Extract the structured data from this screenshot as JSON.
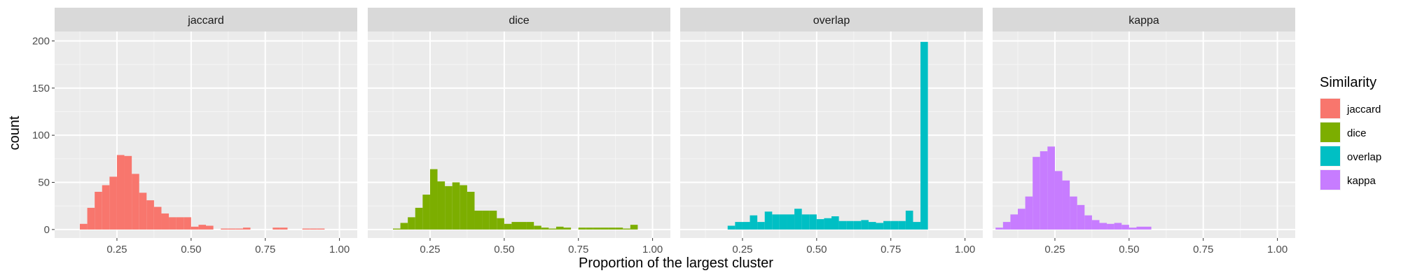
{
  "chart_data": {
    "type": "bar",
    "xlabel": "Proportion of the largest cluster",
    "ylabel": "count",
    "xlim": [
      0.04,
      1.06
    ],
    "ylim": [
      -9,
      210
    ],
    "x_ticks": [
      0.25,
      0.5,
      0.75,
      1.0
    ],
    "x_tick_labels": [
      "0.25",
      "0.50",
      "0.75",
      "1.00"
    ],
    "y_ticks": [
      0,
      50,
      100,
      150,
      200
    ],
    "y_tick_labels": [
      "0",
      "50",
      "100",
      "150",
      "200"
    ],
    "bin_width": 0.025,
    "grid": true,
    "legend": {
      "title": "Similarity",
      "position": "right",
      "entries": [
        {
          "label": "jaccard",
          "color": "#F8766D"
        },
        {
          "label": "dice",
          "color": "#7CAE00"
        },
        {
          "label": "overlap",
          "color": "#00BFC4"
        },
        {
          "label": "kappa",
          "color": "#C77CFF"
        }
      ]
    },
    "panels": [
      {
        "name": "jaccard",
        "color": "#F8766D",
        "bins": [
          [
            0.125,
            6
          ],
          [
            0.15,
            23
          ],
          [
            0.175,
            40
          ],
          [
            0.2,
            47
          ],
          [
            0.225,
            56
          ],
          [
            0.25,
            79
          ],
          [
            0.275,
            78
          ],
          [
            0.3,
            59
          ],
          [
            0.325,
            39
          ],
          [
            0.35,
            31
          ],
          [
            0.375,
            24
          ],
          [
            0.4,
            17
          ],
          [
            0.425,
            13
          ],
          [
            0.45,
            13
          ],
          [
            0.475,
            13
          ],
          [
            0.5,
            3
          ],
          [
            0.525,
            5
          ],
          [
            0.55,
            4
          ],
          [
            0.6,
            1
          ],
          [
            0.625,
            1
          ],
          [
            0.65,
            1
          ],
          [
            0.675,
            2
          ],
          [
            0.775,
            2
          ],
          [
            0.8,
            2
          ],
          [
            0.875,
            1
          ],
          [
            0.9,
            1
          ],
          [
            0.925,
            1
          ]
        ]
      },
      {
        "name": "dice",
        "color": "#7CAE00",
        "bins": [
          [
            0.125,
            1
          ],
          [
            0.15,
            7
          ],
          [
            0.175,
            13
          ],
          [
            0.2,
            23
          ],
          [
            0.225,
            37
          ],
          [
            0.25,
            64
          ],
          [
            0.275,
            51
          ],
          [
            0.3,
            46
          ],
          [
            0.325,
            50
          ],
          [
            0.35,
            47
          ],
          [
            0.375,
            40
          ],
          [
            0.4,
            20
          ],
          [
            0.425,
            20
          ],
          [
            0.45,
            20
          ],
          [
            0.475,
            12
          ],
          [
            0.5,
            6
          ],
          [
            0.525,
            8
          ],
          [
            0.55,
            8
          ],
          [
            0.575,
            8
          ],
          [
            0.6,
            4
          ],
          [
            0.625,
            2
          ],
          [
            0.65,
            1
          ],
          [
            0.675,
            3
          ],
          [
            0.7,
            2
          ],
          [
            0.75,
            2
          ],
          [
            0.775,
            2
          ],
          [
            0.8,
            2
          ],
          [
            0.825,
            2
          ],
          [
            0.85,
            2
          ],
          [
            0.875,
            2
          ],
          [
            0.9,
            1
          ],
          [
            0.925,
            5
          ]
        ]
      },
      {
        "name": "overlap",
        "color": "#00BFC4",
        "bins": [
          [
            0.2,
            4
          ],
          [
            0.225,
            8
          ],
          [
            0.25,
            8
          ],
          [
            0.275,
            15
          ],
          [
            0.3,
            8
          ],
          [
            0.325,
            19
          ],
          [
            0.35,
            16
          ],
          [
            0.375,
            16
          ],
          [
            0.4,
            16
          ],
          [
            0.425,
            22
          ],
          [
            0.45,
            16
          ],
          [
            0.475,
            16
          ],
          [
            0.5,
            11
          ],
          [
            0.525,
            12
          ],
          [
            0.55,
            14
          ],
          [
            0.575,
            9
          ],
          [
            0.6,
            9
          ],
          [
            0.625,
            9
          ],
          [
            0.65,
            10
          ],
          [
            0.675,
            8
          ],
          [
            0.7,
            7
          ],
          [
            0.725,
            9
          ],
          [
            0.75,
            9
          ],
          [
            0.775,
            9
          ],
          [
            0.8,
            20
          ],
          [
            0.825,
            8
          ],
          [
            0.85,
            199
          ]
        ]
      },
      {
        "name": "kappa",
        "color": "#C77CFF",
        "bins": [
          [
            0.05,
            2
          ],
          [
            0.075,
            8
          ],
          [
            0.1,
            16
          ],
          [
            0.125,
            22
          ],
          [
            0.15,
            35
          ],
          [
            0.175,
            77
          ],
          [
            0.2,
            83
          ],
          [
            0.225,
            88
          ],
          [
            0.25,
            62
          ],
          [
            0.275,
            52
          ],
          [
            0.3,
            35
          ],
          [
            0.325,
            26
          ],
          [
            0.35,
            15
          ],
          [
            0.375,
            10
          ],
          [
            0.4,
            7
          ],
          [
            0.425,
            6
          ],
          [
            0.45,
            7
          ],
          [
            0.475,
            5
          ],
          [
            0.5,
            2
          ],
          [
            0.525,
            3
          ],
          [
            0.55,
            3
          ]
        ]
      }
    ]
  }
}
